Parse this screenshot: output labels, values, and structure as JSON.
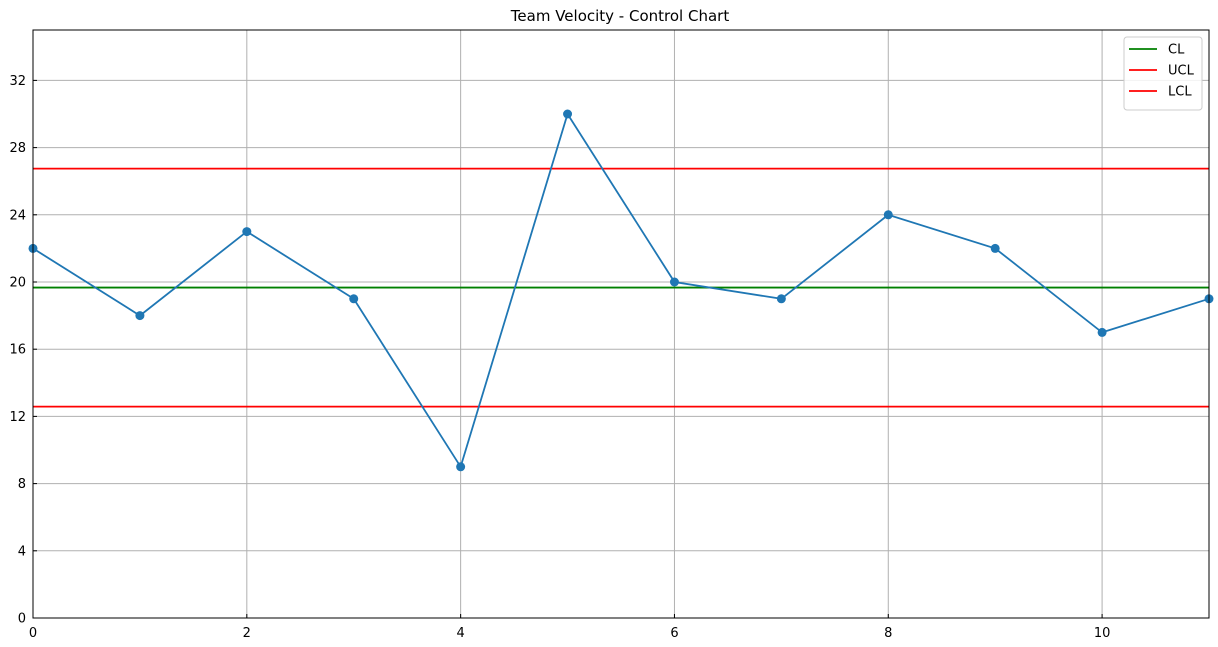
{
  "chart_data": {
    "type": "line",
    "title": "Team Velocity - Control Chart",
    "xlabel": "",
    "ylabel": "",
    "xlim": [
      0,
      11
    ],
    "ylim": [
      0,
      35
    ],
    "xticks": [
      "0",
      "2",
      "4",
      "6",
      "8",
      "10"
    ],
    "yticks": [
      "0",
      "4",
      "8",
      "12",
      "16",
      "20",
      "24",
      "28",
      "32"
    ],
    "grid": true,
    "legend_position": "top-right",
    "x": [
      0,
      1,
      2,
      3,
      4,
      5,
      6,
      7,
      8,
      9,
      10,
      11
    ],
    "series": [
      {
        "values": [
          22,
          18,
          23,
          19,
          9,
          30,
          20,
          19,
          24,
          22,
          17,
          19
        ],
        "color": "#1f77b4",
        "marker": "circle"
      }
    ],
    "reference_lines": [
      {
        "name": "CL",
        "value": 19.67,
        "color": "#008000"
      },
      {
        "name": "UCL",
        "value": 26.75,
        "color": "#ff0000"
      },
      {
        "name": "LCL",
        "value": 12.58,
        "color": "#ff0000"
      }
    ]
  }
}
